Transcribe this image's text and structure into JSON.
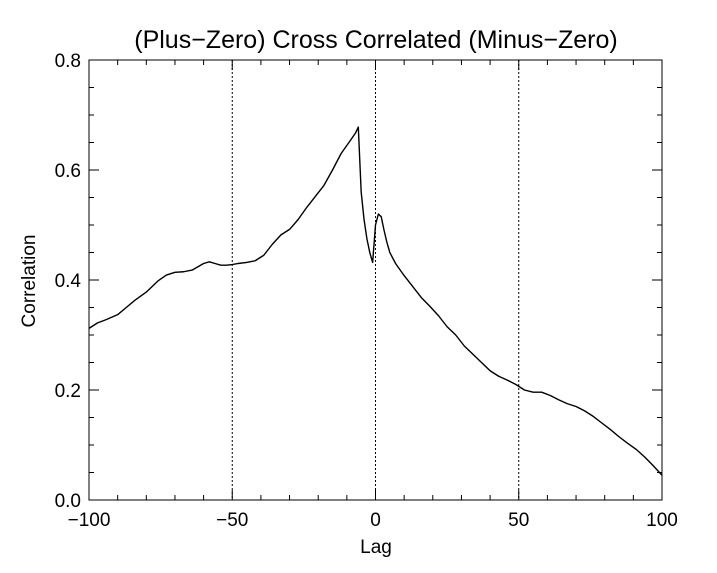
{
  "chart_data": {
    "type": "line",
    "title": "(Plus−Zero) Cross Correlated (Minus−Zero)",
    "xlabel": "Lag",
    "ylabel": "Correlation",
    "xlim": [
      -100,
      100
    ],
    "ylim": [
      0.0,
      0.8
    ],
    "x_ticks": [
      -100,
      -50,
      0,
      50,
      100
    ],
    "x_tick_labels": [
      "−100",
      "−50",
      "0",
      "50",
      "100"
    ],
    "x_minor_step": 10,
    "y_ticks": [
      0.0,
      0.2,
      0.4,
      0.6,
      0.8
    ],
    "y_tick_labels": [
      "0.0",
      "0.2",
      "0.4",
      "0.6",
      "0.8"
    ],
    "y_minor_step": 0.05,
    "grid": false,
    "reference_lines_x": [
      -50,
      0,
      50
    ],
    "series": [
      {
        "x": [
          -100,
          -97,
          -94,
          -90,
          -87,
          -84,
          -80,
          -76,
          -73,
          -70,
          -67,
          -64,
          -60,
          -58,
          -56,
          -54,
          -52,
          -50,
          -48,
          -45,
          -42,
          -39,
          -36,
          -33,
          -30,
          -27,
          -24,
          -21,
          -18,
          -15,
          -12,
          -9,
          -7,
          -6,
          -5,
          -4,
          -3,
          -2,
          -1,
          0,
          1,
          2,
          3,
          4,
          5,
          7,
          10,
          13,
          16,
          19,
          22,
          25,
          28,
          31,
          34,
          37,
          40,
          43,
          46,
          49,
          52,
          55,
          58,
          61,
          64,
          67,
          70,
          73,
          76,
          79,
          82,
          85,
          88,
          91,
          94,
          97,
          100
        ],
        "y": [
          0.312,
          0.322,
          0.328,
          0.337,
          0.35,
          0.363,
          0.378,
          0.398,
          0.409,
          0.414,
          0.415,
          0.418,
          0.43,
          0.433,
          0.43,
          0.427,
          0.427,
          0.428,
          0.43,
          0.432,
          0.435,
          0.445,
          0.465,
          0.482,
          0.492,
          0.51,
          0.532,
          0.552,
          0.572,
          0.6,
          0.63,
          0.652,
          0.667,
          0.678,
          0.56,
          0.51,
          0.475,
          0.45,
          0.432,
          0.5,
          0.52,
          0.515,
          0.49,
          0.468,
          0.45,
          0.43,
          0.408,
          0.388,
          0.368,
          0.352,
          0.335,
          0.315,
          0.3,
          0.28,
          0.265,
          0.25,
          0.235,
          0.225,
          0.218,
          0.21,
          0.2,
          0.196,
          0.196,
          0.19,
          0.182,
          0.175,
          0.17,
          0.162,
          0.152,
          0.14,
          0.128,
          0.115,
          0.103,
          0.092,
          0.078,
          0.062,
          0.045
        ]
      }
    ]
  }
}
